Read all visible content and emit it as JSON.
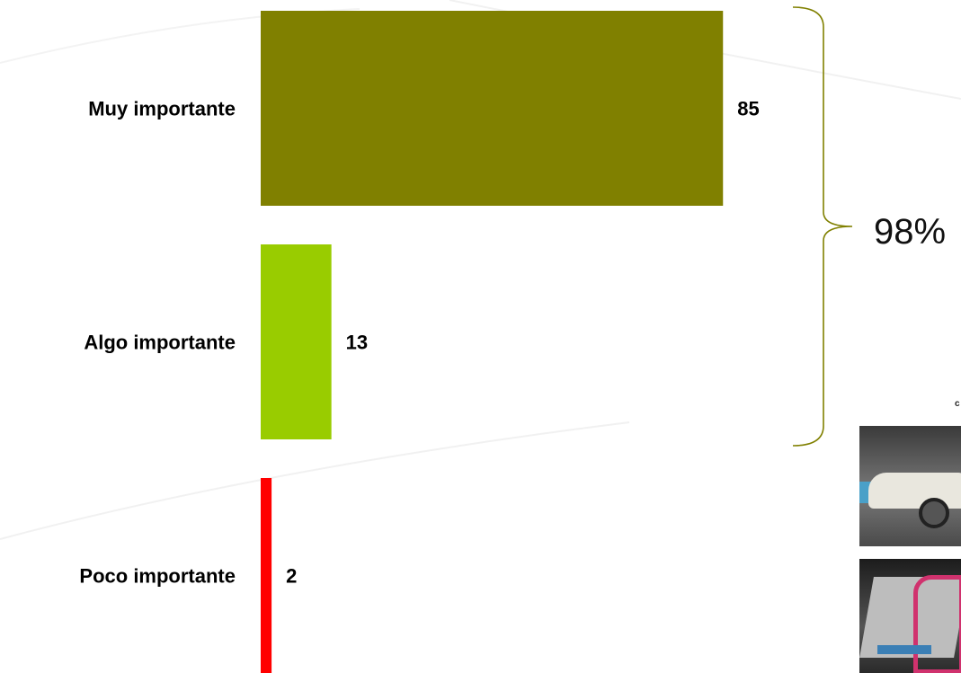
{
  "chart_data": {
    "type": "bar",
    "orientation": "horizontal",
    "categories": [
      "Muy importante",
      "Algo importante",
      "Poco importante"
    ],
    "values": [
      85,
      13,
      2
    ],
    "colors": [
      "#808000",
      "#99cc00",
      "#ff0000"
    ],
    "xlim": [
      0,
      100
    ],
    "bracket_label": "98%"
  },
  "photos": [
    {
      "icon": "crash-test-car-photo"
    },
    {
      "icon": "crashed-car-photo"
    }
  ],
  "photo_caption": "c"
}
